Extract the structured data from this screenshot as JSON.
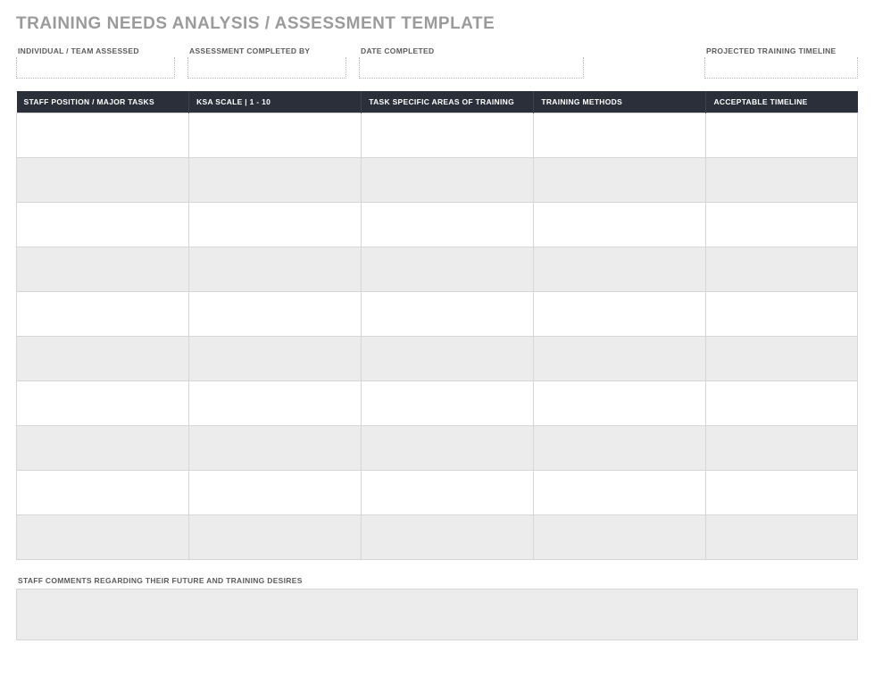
{
  "title": "TRAINING NEEDS ANALYSIS / ASSESSMENT TEMPLATE",
  "meta": {
    "individual_label": "INDIVIDUAL / TEAM ASSESSED",
    "individual_value": "",
    "completed_by_label": "ASSESSMENT COMPLETED BY",
    "completed_by_value": "",
    "date_label": "DATE COMPLETED",
    "date_value": "",
    "timeline_label": "PROJECTED TRAINING TIMELINE",
    "timeline_value": ""
  },
  "table": {
    "columns": [
      "STAFF POSITION / MAJOR TASKS",
      "KSA SCALE  |  1 - 10",
      "TASK SPECIFIC AREAS OF TRAINING",
      "TRAINING METHODS",
      "ACCEPTABLE TIMELINE"
    ],
    "header_bg": "#2b2f3a",
    "header_text_color": "#ffffff",
    "row_alt_bg": "#ececec",
    "row_bg": "#ffffff",
    "border_color": "#d6d6d6",
    "num_rows": 10,
    "rows": [
      [
        "",
        "",
        "",
        "",
        ""
      ],
      [
        "",
        "",
        "",
        "",
        ""
      ],
      [
        "",
        "",
        "",
        "",
        ""
      ],
      [
        "",
        "",
        "",
        "",
        ""
      ],
      [
        "",
        "",
        "",
        "",
        ""
      ],
      [
        "",
        "",
        "",
        "",
        ""
      ],
      [
        "",
        "",
        "",
        "",
        ""
      ],
      [
        "",
        "",
        "",
        "",
        ""
      ],
      [
        "",
        "",
        "",
        "",
        ""
      ],
      [
        "",
        "",
        "",
        "",
        ""
      ]
    ]
  },
  "comments": {
    "label": "STAFF COMMENTS REGARDING THEIR FUTURE AND TRAINING DESIRES",
    "value": ""
  },
  "colors": {
    "title_color": "#9b9b9b",
    "label_color": "#5c5c5c",
    "dotted_border": "#b8b8b8"
  },
  "typography": {
    "title_fontsize": 19,
    "label_fontsize": 8.5,
    "cell_fontsize": 11
  }
}
